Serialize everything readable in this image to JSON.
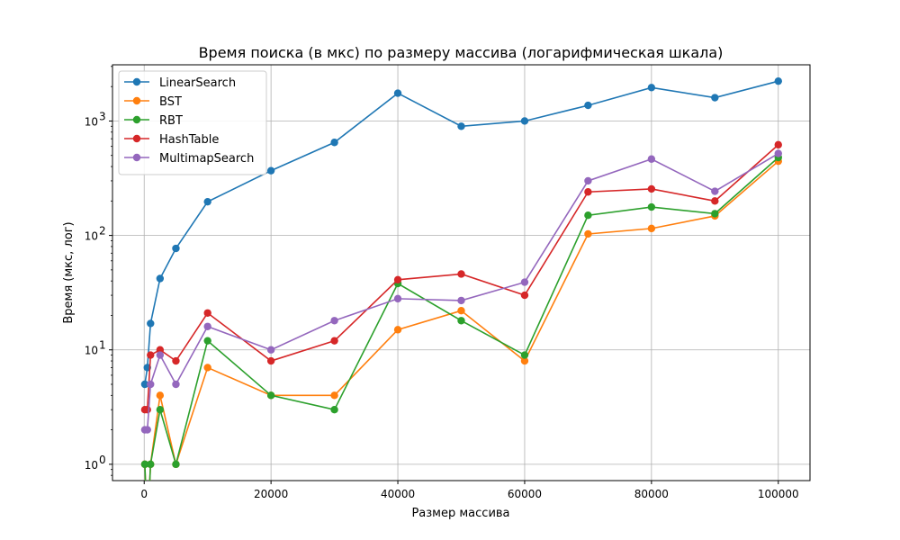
{
  "chart_data": {
    "type": "line",
    "title": "Время поиска (в мкс) по размеру массива (логарифмическая шкала)",
    "xlabel": "Размер массива",
    "ylabel": "Время (мкс, лог)",
    "xlim": [
      -5000,
      105000
    ],
    "ylim": [
      0.72,
      3100
    ],
    "yscale": "log",
    "grid": true,
    "legend_position": "top-left",
    "x": [
      100,
      500,
      1000,
      2500,
      5000,
      10000,
      20000,
      30000,
      40000,
      50000,
      60000,
      70000,
      80000,
      90000,
      100000
    ],
    "series": [
      {
        "name": "LinearSearch",
        "color": "#1f77b4",
        "values": [
          5,
          7,
          17,
          42,
          77,
          197,
          368,
          650,
          1750,
          900,
          1000,
          1370,
          1960,
          1600,
          2230
        ]
      },
      {
        "name": "BST",
        "color": "#ff7f0e",
        "values": [
          1,
          0,
          1,
          4,
          1,
          7,
          4,
          4,
          15,
          22,
          8,
          103,
          115,
          148,
          445
        ]
      },
      {
        "name": "RBT",
        "color": "#2ca02c",
        "values": [
          1,
          0,
          1,
          3,
          1,
          12,
          4,
          3,
          38,
          18,
          9,
          150,
          177,
          155,
          480
        ]
      },
      {
        "name": "HashTable",
        "color": "#d62728",
        "values": [
          3,
          3,
          9,
          10,
          8,
          21,
          8,
          12,
          41,
          46,
          30,
          240,
          255,
          200,
          620
        ]
      },
      {
        "name": "MultimapSearch",
        "color": "#9467bd",
        "values": [
          2,
          2,
          5,
          9,
          5,
          16,
          10,
          18,
          28,
          27,
          39,
          300,
          465,
          243,
          520
        ]
      }
    ],
    "xticks": [
      "0",
      "20000",
      "40000",
      "60000",
      "80000",
      "100000"
    ],
    "yticks": [
      "10",
      "10",
      "10",
      "10"
    ],
    "yticks_exp": [
      "0",
      "1",
      "2",
      "3"
    ]
  }
}
